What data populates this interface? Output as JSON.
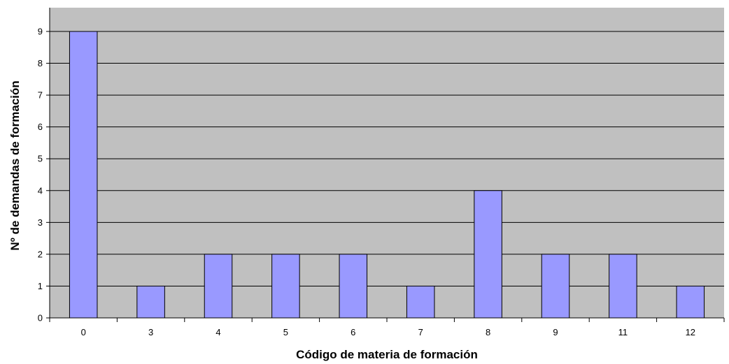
{
  "chart_data": {
    "type": "bar",
    "title": "",
    "xlabel": "Código de materia de formación",
    "ylabel": "Nº de demandas de formación",
    "categories": [
      "0",
      "3",
      "4",
      "5",
      "6",
      "7",
      "8",
      "9",
      "11",
      "12"
    ],
    "values": [
      9,
      1,
      2,
      2,
      2,
      1,
      4,
      2,
      2,
      1
    ],
    "ylim": [
      0,
      9
    ],
    "yticks": [
      0,
      1,
      2,
      3,
      4,
      5,
      6,
      7,
      8,
      9
    ],
    "grid": true,
    "legend": "none",
    "colors": {
      "plot_background": "#c0c0c0",
      "bar_fill": "#9999ff",
      "bar_stroke": "#000000",
      "gridline": "#000000"
    }
  }
}
